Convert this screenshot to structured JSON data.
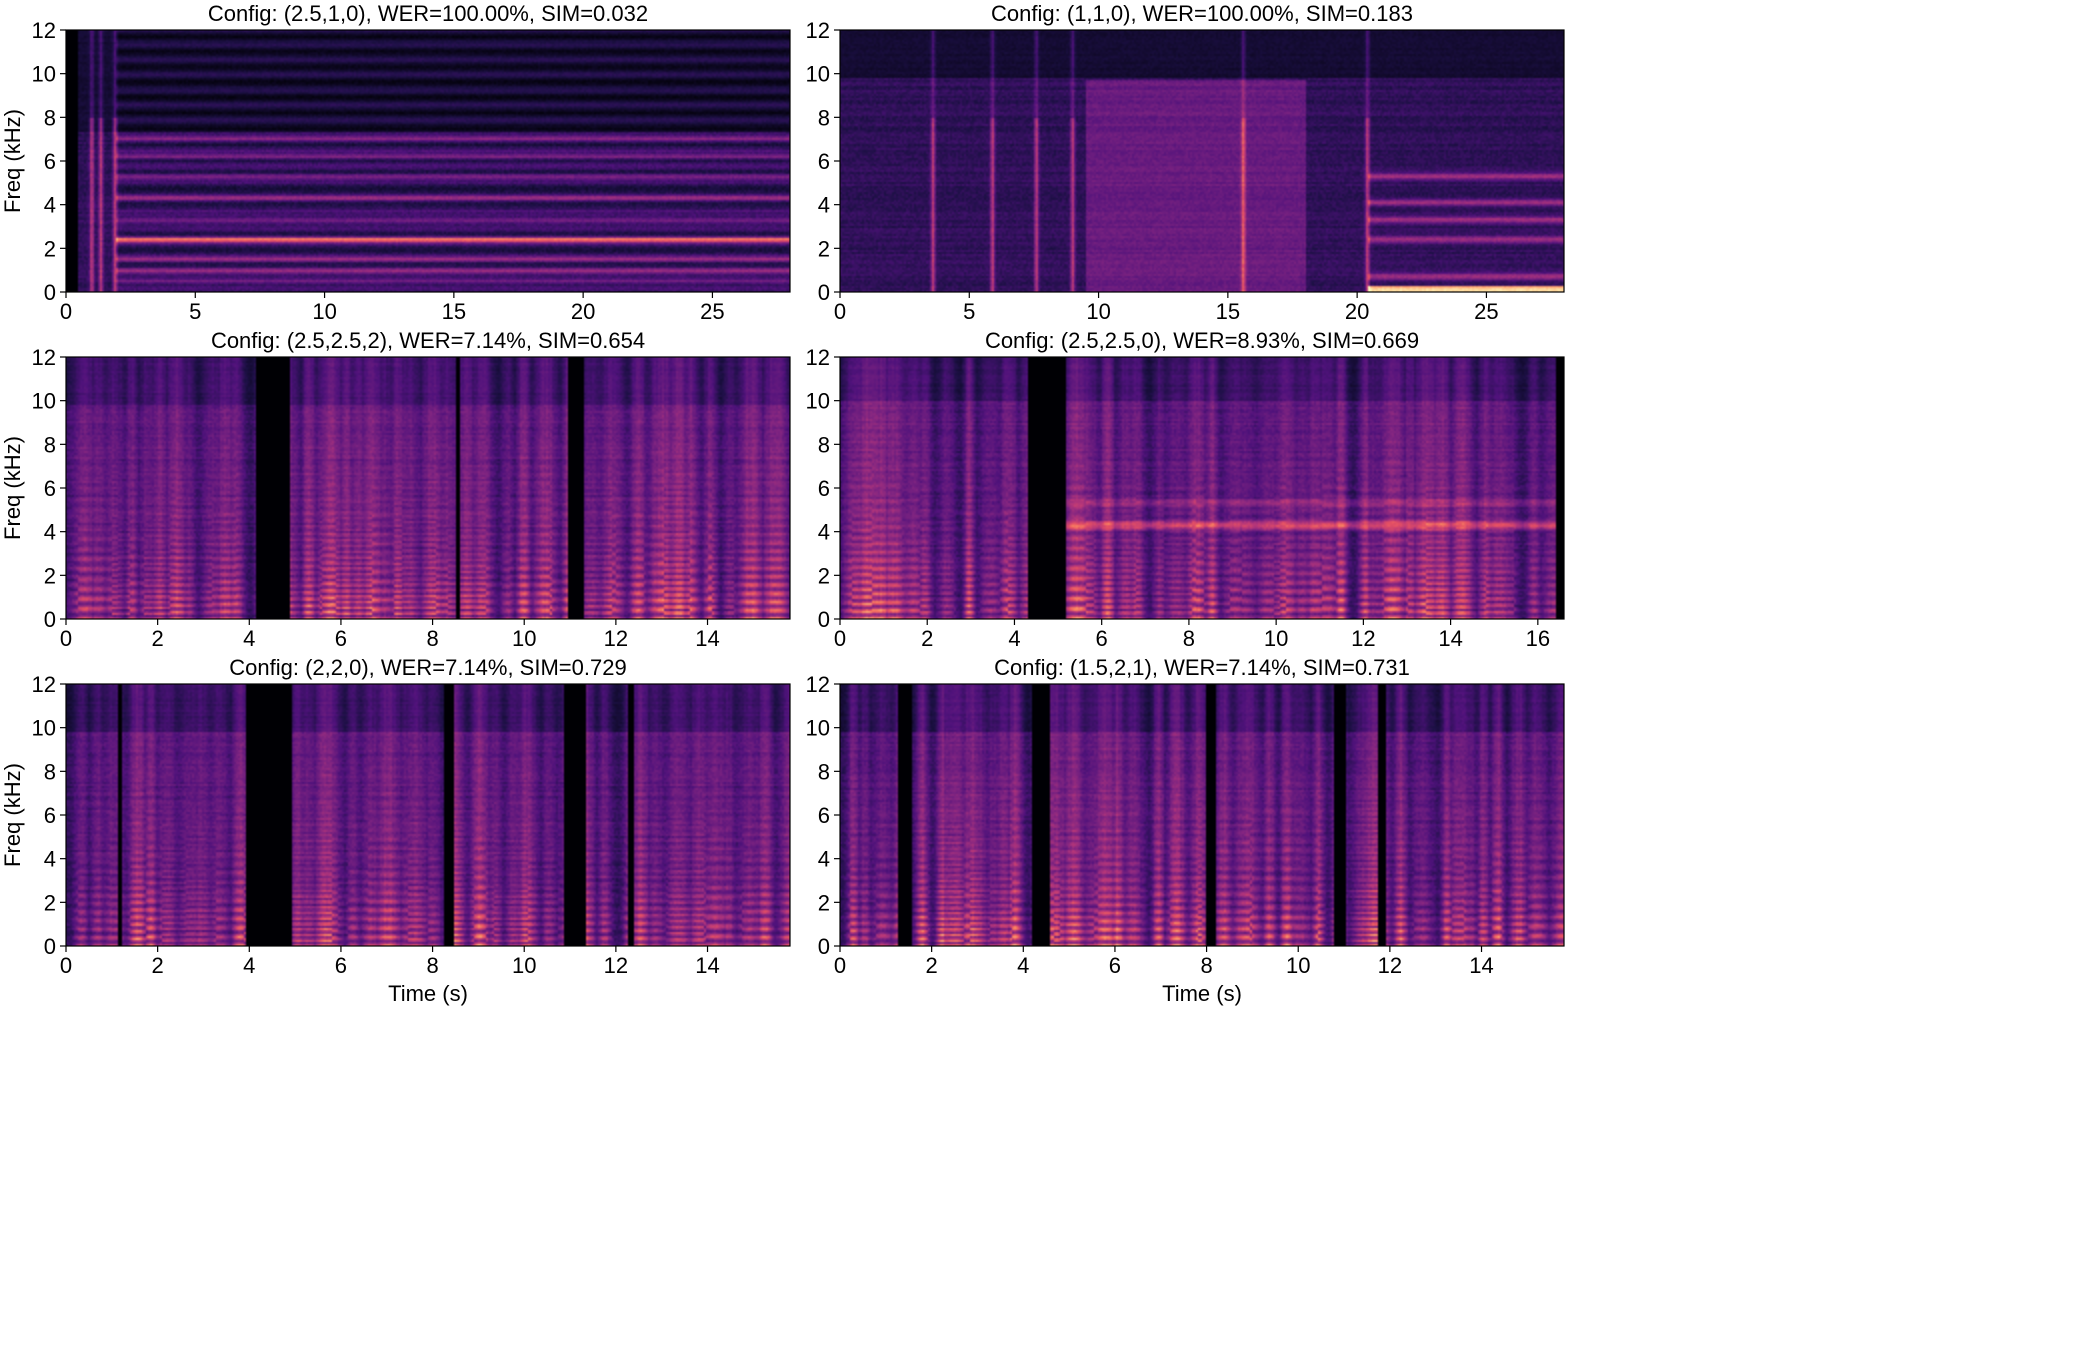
{
  "figure": {
    "background": "#ffffff",
    "colormap": "magma"
  },
  "chart_data": [
    {
      "type": "heatmap",
      "title": "Config: (2.5,1,0), WER=100.00%, SIM=0.032",
      "xlabel": "",
      "ylabel": "Freq (kHz)",
      "xlim": [
        0,
        28
      ],
      "ylim": [
        0,
        12
      ],
      "xticks": [
        0,
        5,
        10,
        15,
        20,
        25
      ],
      "yticks": [
        0,
        2,
        4,
        6,
        8,
        10,
        12
      ],
      "pattern": "sustained",
      "seed": 11,
      "silent": [
        [
          0,
          0.5
        ]
      ],
      "onsets": [
        1.0,
        1.35,
        1.9
      ],
      "bands": [
        0.5,
        1.0,
        1.5,
        2.4,
        3.3,
        4.3,
        5.3,
        6.2,
        7.0
      ],
      "highlight_band": 2.4,
      "upper_cutoff_khz": 7.3
    },
    {
      "type": "heatmap",
      "title": "Config: (1,1,0), WER=100.00%, SIM=0.183",
      "xlabel": "",
      "ylabel": "",
      "xlim": [
        0,
        28
      ],
      "ylim": [
        0,
        12
      ],
      "xticks": [
        0,
        5,
        10,
        15,
        20,
        25
      ],
      "yticks": [
        0,
        2,
        4,
        6,
        8,
        10,
        12
      ],
      "pattern": "noisy",
      "seed": 23,
      "silent": [],
      "onsets": [
        3.6,
        5.9,
        7.6,
        9.0,
        15.6,
        20.4
      ],
      "bands": [
        0.1,
        0.7,
        2.4,
        3.3,
        4.1,
        5.3
      ],
      "highlight_band": 0.1,
      "upper_cutoff_khz": 9.8
    },
    {
      "type": "heatmap",
      "title": "Config: (2.5,2.5,2), WER=7.14%, SIM=0.654",
      "xlabel": "",
      "ylabel": "Freq (kHz)",
      "xlim": [
        0,
        15.8
      ],
      "ylim": [
        0,
        12
      ],
      "xticks": [
        0,
        2,
        4,
        6,
        8,
        10,
        12,
        14
      ],
      "yticks": [
        0,
        2,
        4,
        6,
        8,
        10,
        12
      ],
      "pattern": "speech",
      "seed": 37,
      "silent": [
        [
          4.15,
          4.9
        ],
        [
          8.5,
          8.6
        ],
        [
          10.95,
          11.3
        ]
      ],
      "onsets": [],
      "bands": [],
      "highlight_band": 0,
      "upper_cutoff_khz": 9.8
    },
    {
      "type": "heatmap",
      "title": "Config: (2.5,2.5,0), WER=8.93%, SIM=0.669",
      "xlabel": "",
      "ylabel": "",
      "xlim": [
        0,
        16.6
      ],
      "ylim": [
        0,
        12
      ],
      "xticks": [
        0,
        2,
        4,
        6,
        8,
        10,
        12,
        14,
        16
      ],
      "yticks": [
        0,
        2,
        4,
        6,
        8,
        10,
        12
      ],
      "pattern": "speech_noisy",
      "seed": 41,
      "silent": [
        [
          4.3,
          5.2
        ],
        [
          16.4,
          16.6
        ]
      ],
      "onsets": [],
      "bands": [
        4.3,
        5.3
      ],
      "highlight_band": 4.3,
      "upper_cutoff_khz": 10.0
    },
    {
      "type": "heatmap",
      "title": "Config: (2,2,0), WER=7.14%, SIM=0.729",
      "xlabel": "Time (s)",
      "ylabel": "Freq (kHz)",
      "xlim": [
        0,
        15.8
      ],
      "ylim": [
        0,
        12
      ],
      "xticks": [
        0,
        2,
        4,
        6,
        8,
        10,
        12,
        14
      ],
      "yticks": [
        0,
        2,
        4,
        6,
        8,
        10,
        12
      ],
      "pattern": "speech",
      "seed": 53,
      "silent": [
        [
          1.15,
          1.22
        ],
        [
          3.95,
          4.95
        ],
        [
          8.25,
          8.45
        ],
        [
          10.85,
          11.35
        ],
        [
          12.25,
          12.4
        ]
      ],
      "onsets": [],
      "bands": [],
      "highlight_band": 0,
      "upper_cutoff_khz": 9.8
    },
    {
      "type": "heatmap",
      "title": "Config: (1.5,2,1), WER=7.14%, SIM=0.731",
      "xlabel": "Time (s)",
      "ylabel": "",
      "xlim": [
        0,
        15.8
      ],
      "ylim": [
        0,
        12
      ],
      "xticks": [
        0,
        2,
        4,
        6,
        8,
        10,
        12,
        14
      ],
      "yticks": [
        0,
        2,
        4,
        6,
        8,
        10,
        12
      ],
      "pattern": "speech",
      "seed": 67,
      "silent": [
        [
          1.25,
          1.55
        ],
        [
          4.2,
          4.6
        ],
        [
          8.0,
          8.2
        ],
        [
          10.8,
          11.05
        ],
        [
          11.75,
          11.9
        ]
      ],
      "onsets": [],
      "bands": [],
      "highlight_band": 0,
      "upper_cutoff_khz": 9.8
    }
  ]
}
